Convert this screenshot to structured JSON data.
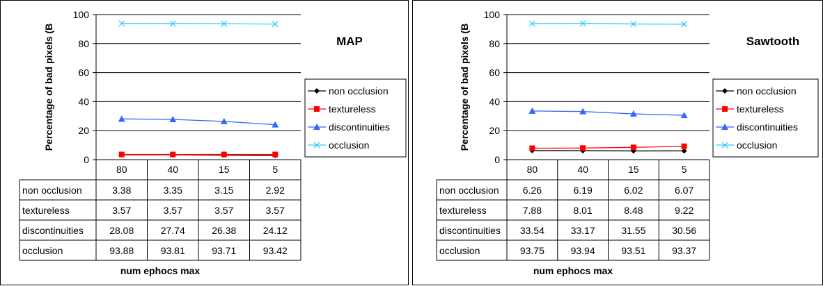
{
  "chart_data": [
    {
      "type": "line",
      "title": "MAP",
      "ylabel": "Percentage of bad pixels (B",
      "xlabel": "num ephocs max",
      "categories": [
        "80",
        "40",
        "15",
        "5"
      ],
      "ylim": [
        0,
        100
      ],
      "yticks": [
        "0",
        "20",
        "40",
        "60",
        "80",
        "100"
      ],
      "grid": true,
      "legend_position": "right",
      "series": [
        {
          "name": "non occlusion",
          "values": [
            3.38,
            3.35,
            3.15,
            2.92
          ],
          "values_text": [
            "3.38",
            "3.35",
            "3.15",
            "2.92"
          ],
          "color": "#000000",
          "marker": "diamond"
        },
        {
          "name": "textureless",
          "values": [
            3.57,
            3.57,
            3.57,
            3.57
          ],
          "values_text": [
            "3.57",
            "3.57",
            "3.57",
            "3.57"
          ],
          "color": "#ff0000",
          "marker": "square"
        },
        {
          "name": "discontinuities",
          "values": [
            28.08,
            27.74,
            26.38,
            24.12
          ],
          "values_text": [
            "28.08",
            "27.74",
            "26.38",
            "24.12"
          ],
          "color": "#3366ff",
          "marker": "triangle"
        },
        {
          "name": "occlusion",
          "values": [
            93.88,
            93.81,
            93.71,
            93.42
          ],
          "values_text": [
            "93.88",
            "93.81",
            "93.71",
            "93.42"
          ],
          "color": "#33ccff",
          "marker": "x"
        }
      ]
    },
    {
      "type": "line",
      "title": "Sawtooth",
      "ylabel": "Percentage of bad pixels (B",
      "xlabel": "num ephocs max",
      "categories": [
        "80",
        "40",
        "15",
        "5"
      ],
      "ylim": [
        0,
        100
      ],
      "yticks": [
        "0",
        "20",
        "40",
        "60",
        "80",
        "100"
      ],
      "grid": true,
      "legend_position": "right",
      "series": [
        {
          "name": "non occlusion",
          "values": [
            6.26,
            6.19,
            6.02,
            6.07
          ],
          "values_text": [
            "6.26",
            "6.19",
            "6.02",
            "6.07"
          ],
          "color": "#000000",
          "marker": "diamond"
        },
        {
          "name": "textureless",
          "values": [
            7.88,
            8.01,
            8.48,
            9.22
          ],
          "values_text": [
            "7.88",
            "8.01",
            "8.48",
            "9.22"
          ],
          "color": "#ff0000",
          "marker": "square"
        },
        {
          "name": "discontinuities",
          "values": [
            33.54,
            33.17,
            31.55,
            30.56
          ],
          "values_text": [
            "33.54",
            "33.17",
            "31.55",
            "30.56"
          ],
          "color": "#3366ff",
          "marker": "triangle"
        },
        {
          "name": "occlusion",
          "values": [
            93.75,
            93.94,
            93.51,
            93.37
          ],
          "values_text": [
            "93.75",
            "93.94",
            "93.51",
            "93.37"
          ],
          "color": "#33ccff",
          "marker": "x"
        }
      ]
    }
  ]
}
